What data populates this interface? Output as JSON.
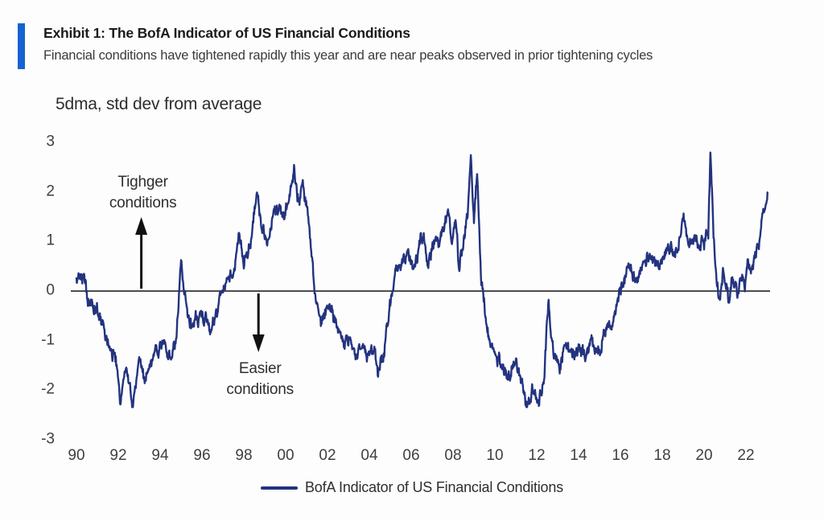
{
  "header": {
    "exhibit_title": "Exhibit 1: The BofA Indicator of US Financial Conditions",
    "subtitle": "Financial conditions have tightened rapidly this year and are near peaks observed in prior tightening cycles"
  },
  "colors": {
    "accent_bar": "#1563d2",
    "line": "#23337f",
    "zero_line": "#4d4d4d",
    "arrow": "#111111"
  },
  "chart_data": {
    "type": "line",
    "title": "Exhibit 1: The BofA Indicator of US Financial Conditions",
    "subtitle": "Financial conditions have tightened rapidly this year and are near peaks observed in prior tightening cycles",
    "ylabel": "5dma, std dev from average",
    "xlabel": "",
    "ylim": [
      -3,
      3
    ],
    "yticks": [
      "3",
      "2",
      "1",
      "0",
      "-1",
      "-2",
      "-3"
    ],
    "ytick_values": [
      3,
      2,
      1,
      0,
      -1,
      -2,
      -3
    ],
    "xticks": [
      "90",
      "92",
      "94",
      "96",
      "98",
      "00",
      "02",
      "04",
      "06",
      "08",
      "10",
      "12",
      "14",
      "16",
      "18",
      "20",
      "22"
    ],
    "xtick_years": [
      1990,
      1992,
      1994,
      1996,
      1998,
      2000,
      2002,
      2004,
      2006,
      2008,
      2010,
      2012,
      2014,
      2016,
      2018,
      2020,
      2022
    ],
    "xlim": [
      1990.0,
      2023.1
    ],
    "grid": false,
    "zero_line": true,
    "legend_position": "bottom-center",
    "legend": [
      {
        "name": "BofA Indicator of US Financial Conditions",
        "color": "#23337f"
      }
    ],
    "annotations": [
      {
        "lines": [
          "Tighger",
          "conditions"
        ],
        "arrow": "up",
        "x_year": 1993.1
      },
      {
        "lines": [
          "Easier",
          "conditions"
        ],
        "arrow": "down",
        "x_year": 1998.7
      }
    ],
    "series": [
      {
        "name": "BofA Indicator of US Financial Conditions",
        "points": [
          [
            1990.0,
            0.15
          ],
          [
            1990.2,
            0.35
          ],
          [
            1990.45,
            0.0
          ],
          [
            1990.7,
            -0.45
          ],
          [
            1991.0,
            -0.25
          ],
          [
            1991.3,
            -0.7
          ],
          [
            1991.6,
            -0.95
          ],
          [
            1991.9,
            -1.45
          ],
          [
            1992.1,
            -2.2
          ],
          [
            1992.4,
            -1.5
          ],
          [
            1992.7,
            -2.3
          ],
          [
            1993.0,
            -1.5
          ],
          [
            1993.3,
            -1.8
          ],
          [
            1993.6,
            -1.35
          ],
          [
            1993.9,
            -1.2
          ],
          [
            1994.2,
            -0.95
          ],
          [
            1994.5,
            -1.3
          ],
          [
            1994.8,
            -0.95
          ],
          [
            1995.0,
            0.65
          ],
          [
            1995.25,
            -0.15
          ],
          [
            1995.5,
            -0.75
          ],
          [
            1995.8,
            -0.5
          ],
          [
            1996.1,
            -0.4
          ],
          [
            1996.35,
            -0.85
          ],
          [
            1996.6,
            -0.55
          ],
          [
            1996.9,
            -0.1
          ],
          [
            1997.2,
            0.25
          ],
          [
            1997.5,
            0.4
          ],
          [
            1997.75,
            1.05
          ],
          [
            1998.0,
            0.6
          ],
          [
            1998.3,
            0.95
          ],
          [
            1998.65,
            1.9
          ],
          [
            1998.9,
            1.25
          ],
          [
            1999.1,
            0.9
          ],
          [
            1999.4,
            1.5
          ],
          [
            1999.7,
            1.75
          ],
          [
            2000.0,
            1.6
          ],
          [
            2000.4,
            2.45
          ],
          [
            2000.6,
            1.9
          ],
          [
            2000.8,
            2.1
          ],
          [
            2001.0,
            1.75
          ],
          [
            2001.2,
            0.9
          ],
          [
            2001.4,
            -0.1
          ],
          [
            2001.7,
            -0.6
          ],
          [
            2002.0,
            -0.35
          ],
          [
            2002.2,
            -0.2
          ],
          [
            2002.5,
            -0.85
          ],
          [
            2002.8,
            -1.1
          ],
          [
            2003.1,
            -0.95
          ],
          [
            2003.4,
            -1.25
          ],
          [
            2003.7,
            -1.1
          ],
          [
            2003.9,
            -1.55
          ],
          [
            2004.2,
            -1.3
          ],
          [
            2004.4,
            -1.65
          ],
          [
            2004.7,
            -1.4
          ],
          [
            2004.9,
            -0.7
          ],
          [
            2005.1,
            0.0
          ],
          [
            2005.3,
            0.5
          ],
          [
            2005.55,
            0.35
          ],
          [
            2005.8,
            0.65
          ],
          [
            2006.1,
            0.5
          ],
          [
            2006.35,
            0.8
          ],
          [
            2006.6,
            1.2
          ],
          [
            2006.8,
            0.55
          ],
          [
            2007.1,
            0.85
          ],
          [
            2007.4,
            1.1
          ],
          [
            2007.8,
            1.7
          ],
          [
            2007.95,
            1.0
          ],
          [
            2008.1,
            1.45
          ],
          [
            2008.3,
            0.45
          ],
          [
            2008.55,
            1.0
          ],
          [
            2008.7,
            1.6
          ],
          [
            2008.85,
            3.0
          ],
          [
            2009.0,
            1.5
          ],
          [
            2009.15,
            2.4
          ],
          [
            2009.35,
            0.3
          ],
          [
            2009.6,
            -0.6
          ],
          [
            2009.85,
            -1.15
          ],
          [
            2010.1,
            -1.35
          ],
          [
            2010.4,
            -1.55
          ],
          [
            2010.7,
            -1.65
          ],
          [
            2010.95,
            -1.4
          ],
          [
            2011.2,
            -1.8
          ],
          [
            2011.5,
            -2.25
          ],
          [
            2011.8,
            -1.9
          ],
          [
            2012.1,
            -2.1
          ],
          [
            2012.35,
            -1.6
          ],
          [
            2012.55,
            -0.15
          ],
          [
            2012.8,
            -1.25
          ],
          [
            2013.1,
            -1.5
          ],
          [
            2013.4,
            -1.05
          ],
          [
            2013.7,
            -1.3
          ],
          [
            2014.0,
            -1.15
          ],
          [
            2014.3,
            -1.35
          ],
          [
            2014.6,
            -1.1
          ],
          [
            2014.9,
            -1.25
          ],
          [
            2015.2,
            -0.9
          ],
          [
            2015.5,
            -0.6
          ],
          [
            2015.8,
            -0.3
          ],
          [
            2016.1,
            0.05
          ],
          [
            2016.4,
            0.55
          ],
          [
            2016.7,
            0.2
          ],
          [
            2017.0,
            0.55
          ],
          [
            2017.3,
            0.8
          ],
          [
            2017.6,
            0.6
          ],
          [
            2017.85,
            0.35
          ],
          [
            2018.1,
            0.75
          ],
          [
            2018.4,
            1.05
          ],
          [
            2018.7,
            0.85
          ],
          [
            2019.0,
            1.55
          ],
          [
            2019.25,
            0.9
          ],
          [
            2019.5,
            1.1
          ],
          [
            2019.75,
            0.85
          ],
          [
            2020.0,
            1.0
          ],
          [
            2020.2,
            1.2
          ],
          [
            2020.3,
            2.95
          ],
          [
            2020.45,
            1.1
          ],
          [
            2020.6,
            0.3
          ],
          [
            2020.75,
            -0.15
          ],
          [
            2020.9,
            0.4
          ],
          [
            2021.05,
            0.1
          ],
          [
            2021.2,
            -0.2
          ],
          [
            2021.35,
            0.3
          ],
          [
            2021.5,
            0.15
          ],
          [
            2021.65,
            -0.1
          ],
          [
            2021.8,
            0.25
          ],
          [
            2021.95,
            0.15
          ],
          [
            2022.1,
            0.45
          ],
          [
            2022.3,
            0.35
          ],
          [
            2022.5,
            0.8
          ],
          [
            2022.7,
            1.25
          ],
          [
            2022.85,
            1.55
          ],
          [
            2023.05,
            2.0
          ]
        ]
      }
    ],
    "noise": {
      "seed": 20221107,
      "amp_walk": 0.2,
      "walk_decay": 0.8,
      "amp_white": 0.1,
      "dt": 0.02
    }
  }
}
